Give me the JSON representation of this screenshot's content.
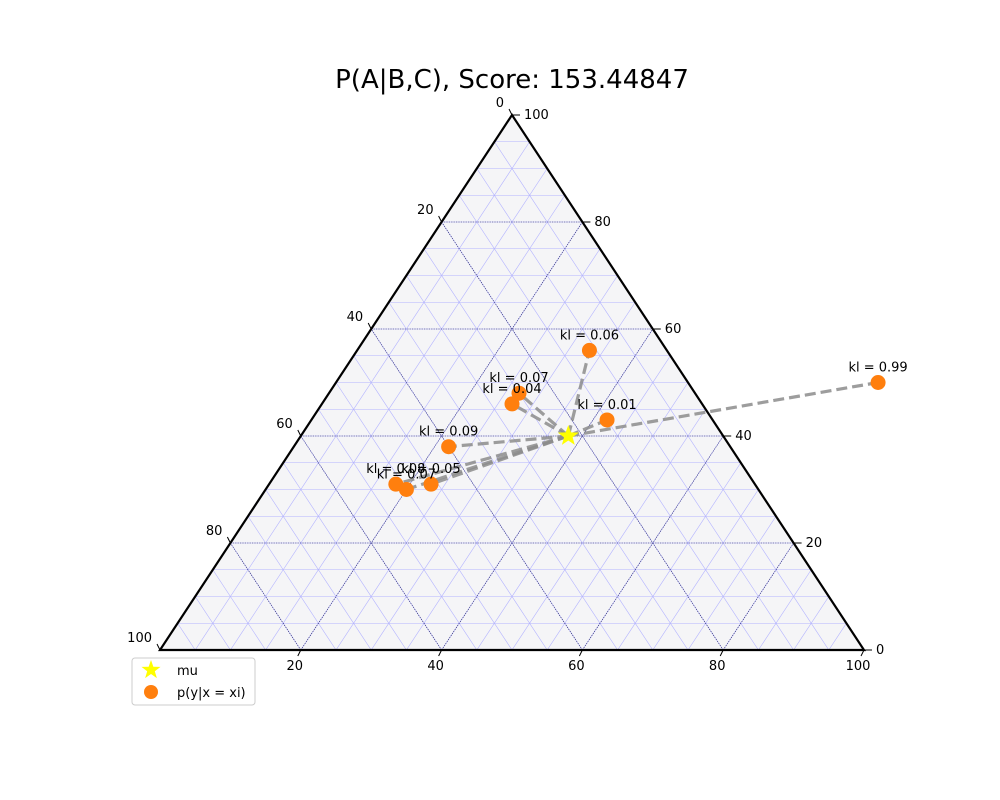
{
  "chart_data": {
    "type": "scatter",
    "subtype": "ternary",
    "title": "P(A|B,C), Score: 153.44847",
    "scale": 100,
    "tick_values": [
      0,
      20,
      40,
      60,
      80,
      100
    ],
    "bottom_ticks": [
      "20",
      "40",
      "60",
      "80",
      "100"
    ],
    "right_ticks": [
      "0",
      "20",
      "40",
      "60",
      "80",
      "100"
    ],
    "left_ticks": [
      "0",
      "20",
      "40",
      "60",
      "80",
      "100"
    ],
    "gridlines": true,
    "background_color": "#f5f5f7",
    "mu": {
      "label": "mu",
      "x": 38,
      "y": 40,
      "color": "#ffff00"
    },
    "points": [
      {
        "kl": "kl = 0.06",
        "x": 33,
        "y": 56
      },
      {
        "kl": "kl = 0.07",
        "x": 27,
        "y": 48
      },
      {
        "kl": "kl = 0.04",
        "x": 27,
        "y": 46
      },
      {
        "kl": "kl = 0.01",
        "x": 42,
        "y": 43
      },
      {
        "kl": "kl = 0.99",
        "x": 77,
        "y": 50
      },
      {
        "kl": "kl = 0.09",
        "x": 22,
        "y": 38
      },
      {
        "kl": "kl = 0.08",
        "x": 18,
        "y": 31
      },
      {
        "kl": "kl = 0.05",
        "x": 23,
        "y": 31
      },
      {
        "kl": "kl = 0.07",
        "x": 20,
        "y": 30
      }
    ],
    "point_color": "#ff7f0e",
    "line_color": "#8c8c8c",
    "legend": {
      "position": "lower-left",
      "entries": [
        {
          "label": "mu",
          "marker": "star",
          "color": "#ffff00"
        },
        {
          "label": "p(y|x = xi)",
          "marker": "circle",
          "color": "#ff7f0e"
        }
      ]
    }
  }
}
